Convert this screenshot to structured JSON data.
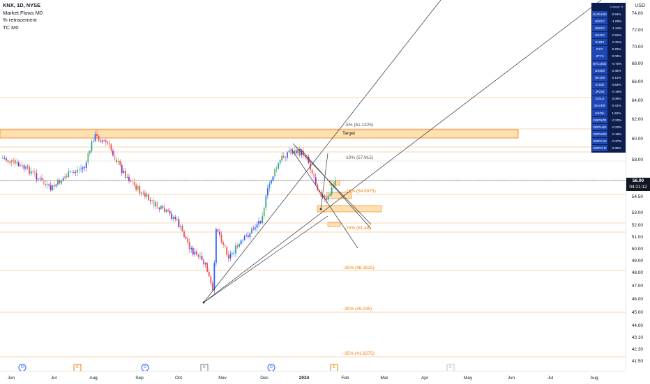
{
  "legend": {
    "symbol": "KNX, 1D, NYSE",
    "indicator1": "Market Flows M0",
    "indicator2": "% retracement",
    "indicator3": "TC M0"
  },
  "price_axis": {
    "currency": "USD",
    "labels": [
      "74.00",
      "72.00",
      "70.00",
      "68.00",
      "66.00",
      "64.00",
      "62.00",
      "60.00",
      "58.00",
      "54.50",
      "53.00",
      "52.00",
      "51.00",
      "50.00",
      "49.00",
      "48.00",
      "47.00",
      "46.00",
      "45.00",
      "44.00",
      "43.10",
      "42.30",
      "41.50"
    ],
    "current_price": "56.00",
    "countdown": "04:21:12"
  },
  "time_axis": {
    "labels": [
      "Jun",
      "Jul",
      "Aug",
      "Sep",
      "Oct",
      "Nov",
      "Dec",
      "2024",
      "Feb",
      "Mar",
      "Apr",
      "May",
      "Jun",
      "Jul",
      "Aug"
    ]
  },
  "events": [
    {
      "type": "dividend",
      "glyph": "D"
    },
    {
      "type": "earnings",
      "glyph": "E"
    },
    {
      "type": "dividend",
      "glyph": "D"
    },
    {
      "type": "split",
      "glyph": "E"
    },
    {
      "type": "dividend",
      "glyph": "D"
    },
    {
      "type": "earnings",
      "glyph": "E"
    },
    {
      "type": "future",
      "glyph": "E"
    }
  ],
  "annotations": {
    "target": "Target",
    "fib_5": "-5% (61.1325)",
    "fib_10": "-10% (57.915)",
    "fib_15": "-15% (54.6975)",
    "fib_20": "-20% (51.48)",
    "fib_25": "-25% (48.2625)",
    "fib_30": "-30% (45.045)",
    "fib_35": "-35% (41.8275)"
  },
  "ticker_table": {
    "header": {
      "symbol": "(hidden)",
      "change": "Change %"
    },
    "rows": [
      {
        "symbol": "EURUSD",
        "change": "0.64%"
      },
      {
        "symbol": "US01Y",
        "change": "-1.08%"
      },
      {
        "symbol": "US02Y",
        "change": "-1.34%"
      },
      {
        "symbol": "US10Y",
        "change": "-0.91%"
      },
      {
        "symbol": "EURX",
        "change": "-0.31%"
      },
      {
        "symbol": "DXY",
        "change": "0.20%"
      },
      {
        "symbol": "JPYX",
        "change": "0.03%"
      },
      {
        "symbol": "BTCUSD",
        "change": "-0.70%"
      },
      {
        "symbol": "US500",
        "change": "0.48%"
      },
      {
        "symbol": "UK100",
        "change": "0.11%"
      },
      {
        "symbol": "EUSD",
        "change": "0.53%"
      },
      {
        "symbol": "JP225",
        "change": "-0.19%"
      },
      {
        "symbol": "GOLD",
        "change": "0.09%"
      },
      {
        "symbol": "SILVER",
        "change": "0.41%"
      },
      {
        "symbol": "USOIL",
        "change": "1.52%"
      },
      {
        "symbol": "GBPNZD",
        "change": "-0.20%"
      },
      {
        "symbol": "GBPAUD",
        "change": "-0.22%"
      },
      {
        "symbol": "GBPUSD",
        "change": "-0.18%"
      },
      {
        "symbol": "GBPCAD",
        "change": "-0.37%"
      },
      {
        "symbol": "GBPCHF",
        "change": "0.39%"
      }
    ]
  },
  "colors": {
    "up": "#26a69a",
    "down": "#ef5350",
    "up_alt": "#2962ff",
    "down_alt": "#9c27b0",
    "fib": "#f57c00",
    "zone_fill": "#ffe0b2",
    "table_bg": "#0b1e4d",
    "table_sym_bg": "#1e47b5"
  },
  "chart_data": {
    "type": "candlestick",
    "symbol": "KNX",
    "timeframe": "1D",
    "exchange": "NYSE",
    "close_path": [
      [
        "2023-06-01",
        57.8
      ],
      [
        "2023-06-15",
        56.9
      ],
      [
        "2023-06-28",
        55.2
      ],
      [
        "2023-07-10",
        56.5
      ],
      [
        "2023-07-25",
        57.4
      ],
      [
        "2023-08-01",
        60.4
      ],
      [
        "2023-08-10",
        59.6
      ],
      [
        "2023-08-20",
        57.0
      ],
      [
        "2023-09-01",
        55.0
      ],
      [
        "2023-09-15",
        53.5
      ],
      [
        "2023-09-28",
        52.6
      ],
      [
        "2023-10-10",
        49.9
      ],
      [
        "2023-10-20",
        48.6
      ],
      [
        "2023-10-25",
        46.4
      ],
      [
        "2023-10-27",
        52.0
      ],
      [
        "2023-11-05",
        49.4
      ],
      [
        "2023-11-15",
        50.7
      ],
      [
        "2023-11-28",
        52.5
      ],
      [
        "2023-12-05",
        56.0
      ],
      [
        "2023-12-14",
        58.2
      ],
      [
        "2023-12-20",
        58.9
      ],
      [
        "2024-01-02",
        58.6
      ],
      [
        "2024-01-10",
        55.6
      ],
      [
        "2024-01-17",
        54.0
      ],
      [
        "2024-01-24",
        56.0
      ]
    ],
    "current_price": 56.0,
    "ylim": [
      41.5,
      74.0
    ]
  }
}
